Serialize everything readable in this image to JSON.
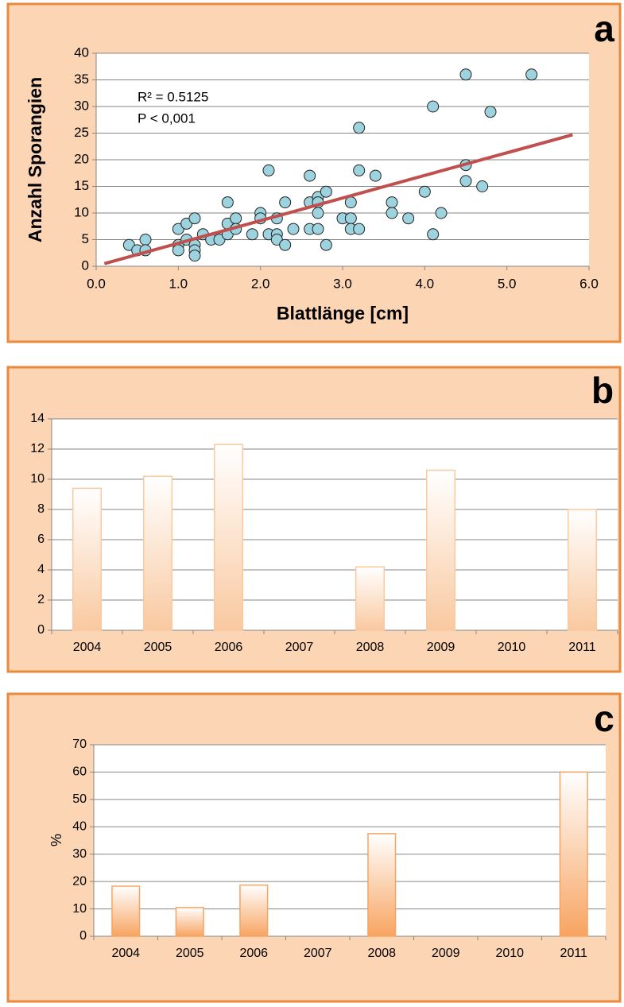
{
  "chart_data": [
    {
      "type": "scatter",
      "panel_label": "a",
      "x_label": "Blattlänge [cm]",
      "y_label": "Anzahl Sporangien",
      "annotations": [
        "R² = 0.5125",
        "P < 0,001"
      ],
      "x": [
        0.4,
        0.5,
        0.6,
        0.6,
        1.0,
        1.0,
        1.0,
        1.1,
        1.1,
        1.2,
        1.2,
        1.2,
        1.2,
        1.3,
        1.4,
        1.5,
        1.6,
        1.6,
        1.6,
        1.7,
        1.7,
        1.9,
        2.0,
        2.0,
        2.1,
        2.1,
        2.2,
        2.2,
        2.2,
        2.3,
        2.3,
        2.4,
        2.6,
        2.6,
        2.6,
        2.7,
        2.7,
        2.7,
        2.7,
        2.8,
        2.8,
        3.0,
        3.1,
        3.1,
        3.1,
        3.2,
        3.2,
        3.2,
        3.4,
        3.6,
        3.6,
        3.8,
        4.0,
        4.1,
        4.1,
        4.2,
        4.5,
        4.5,
        4.5,
        4.7,
        4.8,
        5.3
      ],
      "values": [
        4,
        3,
        5,
        3,
        7,
        4,
        3,
        8,
        5,
        9,
        4,
        3,
        2,
        6,
        5,
        5,
        12,
        8,
        6,
        9,
        7,
        6,
        10,
        9,
        18,
        6,
        9,
        6,
        5,
        12,
        4,
        7,
        17,
        12,
        7,
        13,
        12,
        10,
        7,
        14,
        4,
        9,
        12,
        9,
        7,
        26,
        18,
        7,
        17,
        12,
        10,
        9,
        14,
        30,
        6,
        10,
        36,
        19,
        16,
        15,
        29,
        36
      ],
      "color": "#9dd3df",
      "trendline": {
        "x": [
          0.1,
          5.8
        ],
        "values": [
          0.5,
          24.7
        ],
        "color": "#c0504d"
      },
      "xlim": [
        0,
        6
      ],
      "xticks": [
        {
          "value": 0,
          "label": "0.0"
        },
        {
          "value": 1,
          "label": "1.0"
        },
        {
          "value": 2,
          "label": "2.0"
        },
        {
          "value": 3,
          "label": "3.0"
        },
        {
          "value": 4,
          "label": "4.0"
        },
        {
          "value": 5,
          "label": "5.0"
        },
        {
          "value": 6,
          "label": "6.0"
        }
      ],
      "ylim": [
        0,
        40
      ],
      "yticks": [
        0,
        5,
        10,
        15,
        20,
        25,
        30,
        35,
        40
      ],
      "grid": true
    },
    {
      "type": "bar",
      "panel_label": "b",
      "categories": [
        "2004",
        "2005",
        "2006",
        "2007",
        "2008",
        "2009",
        "2010",
        "2011"
      ],
      "values": [
        9.4,
        10.2,
        12.3,
        null,
        4.2,
        10.6,
        null,
        8.0
      ],
      "color": "#f9c9a0",
      "ylim": [
        0,
        14
      ],
      "yticks": [
        0,
        2,
        4,
        6,
        8,
        10,
        12,
        14
      ],
      "grid": true
    },
    {
      "type": "bar",
      "panel_label": "c",
      "y_label": "%",
      "categories": [
        "2004",
        "2005",
        "2006",
        "2007",
        "2008",
        "2009",
        "2010",
        "2011"
      ],
      "values": [
        18.3,
        10.5,
        18.7,
        null,
        37.5,
        null,
        null,
        60
      ],
      "color": "#f7a461",
      "ylim": [
        0,
        70
      ],
      "yticks": [
        0,
        10,
        20,
        30,
        40,
        50,
        60,
        70
      ],
      "grid": true
    }
  ]
}
